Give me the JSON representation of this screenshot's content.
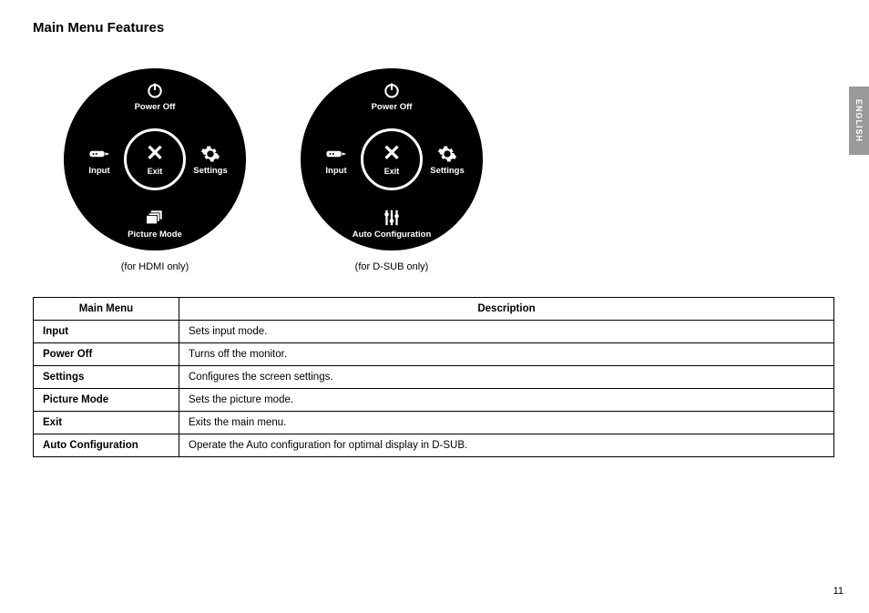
{
  "title": "Main Menu Features",
  "language_tab": "ENGLISH",
  "page_number": "11",
  "dials": [
    {
      "top_label": "Power Off",
      "left_label": "Input",
      "right_label": "Settings",
      "bottom_label": "Picture Mode",
      "center_label": "Exit",
      "caption": "(for HDMI only)",
      "bottom_icon": "picture-mode"
    },
    {
      "top_label": "Power Off",
      "left_label": "Input",
      "right_label": "Settings",
      "bottom_label": "Auto Configuration",
      "center_label": "Exit",
      "caption": "(for D-SUB only)",
      "bottom_icon": "sliders"
    }
  ],
  "table": {
    "header_menu": "Main Menu",
    "header_desc": "Description",
    "rows": [
      {
        "menu": "Input",
        "desc": "Sets input mode."
      },
      {
        "menu": "Power Off",
        "desc": "Turns off the monitor."
      },
      {
        "menu": "Settings",
        "desc": "Configures the screen settings."
      },
      {
        "menu": "Picture Mode",
        "desc": "Sets the picture mode."
      },
      {
        "menu": "Exit",
        "desc": "Exits the main menu."
      },
      {
        "menu": "Auto Configuration",
        "desc": "Operate the Auto configuration for optimal display in D-SUB."
      }
    ]
  }
}
